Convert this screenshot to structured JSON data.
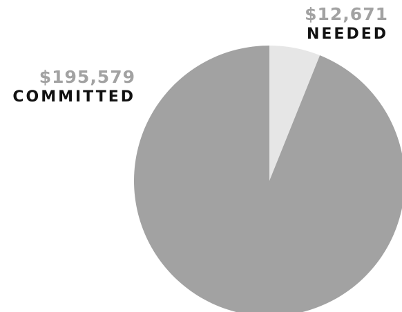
{
  "chart_data": {
    "type": "pie",
    "title": "",
    "start_angle_deg": 0,
    "direction": "clockwise",
    "slices": [
      {
        "label": "NEEDED",
        "display_value": "$12,671",
        "value": 12671,
        "color": "#e6e6e6"
      },
      {
        "label": "COMMITTED",
        "display_value": "$195,579",
        "value": 195579,
        "color": "#a2a2a2"
      }
    ],
    "legend": "none",
    "label_colors": {
      "amount": "#a2a2a2",
      "caption": "#111111"
    }
  }
}
